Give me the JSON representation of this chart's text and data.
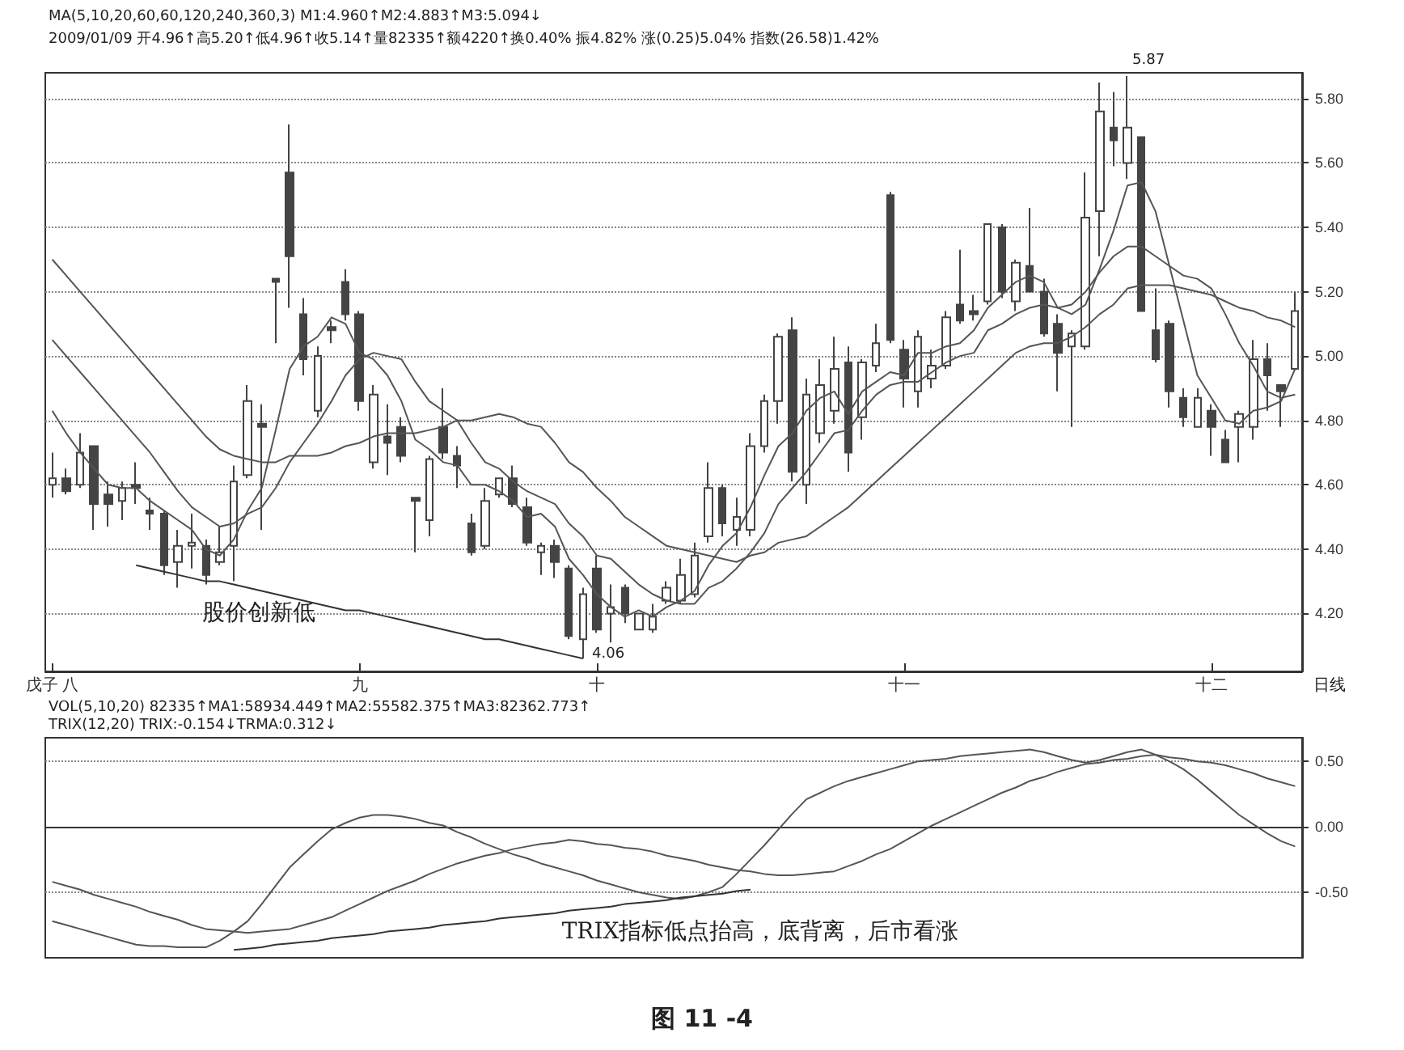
{
  "chart_data": [
    {
      "type": "candlestick",
      "color": "#444444",
      "categories": [
        "戊子 八",
        null,
        null,
        null,
        null,
        null,
        null,
        null,
        null,
        null,
        null,
        null,
        null,
        null,
        null,
        null,
        null,
        null,
        null,
        null,
        null,
        null,
        "九",
        null,
        null,
        null,
        null,
        null,
        null,
        null,
        null,
        null,
        null,
        null,
        null,
        null,
        null,
        null,
        null,
        "十",
        null,
        null,
        null,
        null,
        null,
        null,
        null,
        null,
        null,
        null,
        null,
        null,
        null,
        null,
        null,
        null,
        null,
        null,
        null,
        null,
        null,
        "十一",
        null,
        null,
        null,
        null,
        null,
        null,
        null,
        null,
        null,
        null,
        null,
        null,
        null,
        null,
        null,
        null,
        null,
        null,
        null,
        null,
        null,
        "十二",
        null,
        null,
        null,
        null,
        null,
        null
      ],
      "ohlc": [
        [
          4.6,
          4.7,
          4.56,
          4.62
        ],
        [
          4.62,
          4.65,
          4.57,
          4.58
        ],
        [
          4.6,
          4.76,
          4.59,
          4.7
        ],
        [
          4.72,
          4.72,
          4.46,
          4.54
        ],
        [
          4.57,
          4.61,
          4.47,
          4.54
        ],
        [
          4.55,
          4.61,
          4.49,
          4.59
        ],
        [
          4.6,
          4.67,
          4.54,
          4.59
        ],
        [
          4.52,
          4.56,
          4.46,
          4.51
        ],
        [
          4.51,
          4.52,
          4.32,
          4.35
        ],
        [
          4.36,
          4.46,
          4.28,
          4.41
        ],
        [
          4.41,
          4.51,
          4.34,
          4.42
        ],
        [
          4.41,
          4.43,
          4.29,
          4.32
        ],
        [
          4.36,
          4.47,
          4.35,
          4.39
        ],
        [
          4.41,
          4.66,
          4.3,
          4.61
        ],
        [
          4.63,
          4.91,
          4.62,
          4.86
        ],
        [
          4.79,
          4.85,
          4.46,
          4.78
        ],
        [
          5.24,
          5.24,
          5.04,
          5.23
        ],
        [
          5.57,
          5.72,
          5.15,
          5.31
        ],
        [
          5.13,
          5.18,
          4.94,
          4.99
        ],
        [
          4.83,
          5.03,
          4.81,
          5.0
        ],
        [
          5.09,
          5.11,
          5.04,
          5.08
        ],
        [
          5.23,
          5.27,
          5.11,
          5.13
        ],
        [
          5.13,
          5.14,
          4.83,
          4.86
        ],
        [
          4.67,
          4.91,
          4.65,
          4.88
        ],
        [
          4.75,
          4.85,
          4.63,
          4.73
        ],
        [
          4.78,
          4.81,
          4.67,
          4.69
        ],
        [
          4.56,
          4.56,
          4.39,
          4.55
        ],
        [
          4.49,
          4.69,
          4.44,
          4.68
        ],
        [
          4.78,
          4.9,
          4.68,
          4.7
        ],
        [
          4.69,
          4.72,
          4.59,
          4.66
        ],
        [
          4.48,
          4.51,
          4.38,
          4.39
        ],
        [
          4.41,
          4.59,
          4.4,
          4.55
        ],
        [
          4.57,
          4.62,
          4.56,
          4.62
        ],
        [
          4.62,
          4.66,
          4.53,
          4.54
        ],
        [
          4.53,
          4.56,
          4.41,
          4.42
        ],
        [
          4.39,
          4.42,
          4.32,
          4.41
        ],
        [
          4.41,
          4.43,
          4.31,
          4.36
        ],
        [
          4.34,
          4.35,
          4.12,
          4.13
        ],
        [
          4.12,
          4.28,
          4.06,
          4.26
        ],
        [
          4.34,
          4.38,
          4.14,
          4.15
        ],
        [
          4.2,
          4.29,
          4.11,
          4.22
        ],
        [
          4.28,
          4.29,
          4.17,
          4.2
        ],
        [
          4.15,
          4.2,
          4.15,
          4.2
        ],
        [
          4.15,
          4.23,
          4.14,
          4.19
        ],
        [
          4.24,
          4.3,
          4.23,
          4.28
        ],
        [
          4.24,
          4.37,
          4.23,
          4.32
        ],
        [
          4.26,
          4.42,
          4.25,
          4.38
        ],
        [
          4.44,
          4.67,
          4.42,
          4.59
        ],
        [
          4.59,
          4.6,
          4.44,
          4.48
        ],
        [
          4.46,
          4.56,
          4.41,
          4.5
        ],
        [
          4.46,
          4.76,
          4.44,
          4.72
        ],
        [
          4.72,
          4.88,
          4.7,
          4.86
        ],
        [
          4.86,
          5.07,
          4.79,
          5.06
        ],
        [
          5.08,
          5.12,
          4.61,
          4.64
        ],
        [
          4.6,
          4.93,
          4.54,
          4.88
        ],
        [
          4.76,
          4.99,
          4.73,
          4.91
        ],
        [
          4.83,
          5.06,
          4.79,
          4.96
        ],
        [
          4.98,
          5.03,
          4.64,
          4.7
        ],
        [
          4.81,
          4.99,
          4.74,
          4.98
        ],
        [
          4.97,
          5.1,
          4.95,
          5.04
        ],
        [
          5.5,
          5.51,
          5.04,
          5.05
        ],
        [
          5.02,
          5.05,
          4.84,
          4.93
        ],
        [
          4.89,
          5.08,
          4.84,
          5.06
        ],
        [
          4.93,
          5.02,
          4.9,
          4.97
        ],
        [
          4.97,
          5.14,
          4.96,
          5.12
        ],
        [
          5.16,
          5.33,
          5.1,
          5.11
        ],
        [
          5.14,
          5.19,
          5.11,
          5.13
        ],
        [
          5.17,
          5.41,
          5.16,
          5.41
        ],
        [
          5.4,
          5.41,
          5.18,
          5.2
        ],
        [
          5.17,
          5.3,
          5.14,
          5.29
        ],
        [
          5.28,
          5.46,
          5.2,
          5.2
        ],
        [
          5.2,
          5.24,
          5.06,
          5.07
        ],
        [
          5.1,
          5.13,
          4.89,
          5.01
        ],
        [
          5.03,
          5.08,
          4.78,
          5.07
        ],
        [
          5.03,
          5.57,
          5.02,
          5.43
        ],
        [
          5.45,
          5.85,
          5.31,
          5.76
        ],
        [
          5.71,
          5.82,
          5.59,
          5.67
        ],
        [
          5.6,
          5.87,
          5.55,
          5.71
        ],
        [
          5.68,
          5.68,
          5.14,
          5.14
        ],
        [
          5.08,
          5.21,
          4.98,
          4.99
        ],
        [
          5.1,
          5.11,
          4.84,
          4.89
        ],
        [
          4.87,
          4.9,
          4.78,
          4.81
        ],
        [
          4.78,
          4.9,
          4.78,
          4.87
        ],
        [
          4.83,
          4.85,
          4.69,
          4.78
        ],
        [
          4.74,
          4.77,
          4.67,
          4.67
        ],
        [
          4.78,
          4.83,
          4.67,
          4.82
        ],
        [
          4.78,
          5.05,
          4.74,
          4.99
        ],
        [
          4.99,
          5.04,
          4.83,
          4.94
        ],
        [
          4.91,
          4.91,
          4.78,
          4.89
        ],
        [
          4.96,
          5.2,
          4.96,
          5.14
        ]
      ],
      "series": [
        {
          "type": "line",
          "color": "#555555",
          "values": [
            4.83,
            4.76,
            4.7,
            4.65,
            4.6,
            4.59,
            4.59,
            4.55,
            4.52,
            4.49,
            4.46,
            4.4,
            4.38,
            4.43,
            4.52,
            4.59,
            4.77,
            4.96,
            5.03,
            5.06,
            5.12,
            5.1,
            5.01,
            4.99,
            4.94,
            4.86,
            4.74,
            4.71,
            4.67,
            4.66,
            4.6,
            4.6,
            4.58,
            4.55,
            4.5,
            4.51,
            4.47,
            4.37,
            4.32,
            4.26,
            4.22,
            4.19,
            4.21,
            4.19,
            4.22,
            4.24,
            4.27,
            4.35,
            4.41,
            4.45,
            4.53,
            4.63,
            4.72,
            4.76,
            4.83,
            4.87,
            4.89,
            4.82,
            4.89,
            4.92,
            4.95,
            4.94,
            5.01,
            5.01,
            5.03,
            5.04,
            5.08,
            5.15,
            5.19,
            5.23,
            5.25,
            5.23,
            5.15,
            5.13,
            5.16,
            5.27,
            5.39,
            5.53,
            5.54,
            5.45,
            5.28,
            5.11,
            4.94,
            4.87,
            4.8,
            4.79,
            4.83,
            4.84,
            4.86,
            4.96
          ]
        },
        {
          "type": "line",
          "color": "#555555",
          "values": [
            5.05,
            5.0,
            4.95,
            4.9,
            4.85,
            4.8,
            4.75,
            4.7,
            4.64,
            4.58,
            4.53,
            4.5,
            4.47,
            4.48,
            4.51,
            4.53,
            4.59,
            4.67,
            4.73,
            4.79,
            4.86,
            4.94,
            4.99,
            5.01,
            5.0,
            4.99,
            4.92,
            4.86,
            4.83,
            4.8,
            4.73,
            4.67,
            4.65,
            4.61,
            4.58,
            4.56,
            4.54,
            4.48,
            4.44,
            4.38,
            4.37,
            4.33,
            4.29,
            4.26,
            4.24,
            4.23,
            4.23,
            4.28,
            4.3,
            4.34,
            4.39,
            4.45,
            4.54,
            4.59,
            4.64,
            4.7,
            4.76,
            4.77,
            4.83,
            4.88,
            4.91,
            4.92,
            4.92,
            4.95,
            4.98,
            5.0,
            5.01,
            5.08,
            5.1,
            5.13,
            5.15,
            5.16,
            5.15,
            5.16,
            5.2,
            5.26,
            5.31,
            5.34,
            5.34,
            5.31,
            5.28,
            5.25,
            5.24,
            5.21,
            5.13,
            5.04,
            4.97,
            4.89,
            4.87,
            4.88
          ]
        },
        {
          "type": "line",
          "color": "#555555",
          "values": [
            5.3,
            5.25,
            5.2,
            5.15,
            5.1,
            5.05,
            5.0,
            4.95,
            4.9,
            4.85,
            4.8,
            4.75,
            4.71,
            4.69,
            4.68,
            4.67,
            4.67,
            4.69,
            4.69,
            4.69,
            4.7,
            4.72,
            4.73,
            4.75,
            4.76,
            4.76,
            4.76,
            4.77,
            4.78,
            4.8,
            4.8,
            4.81,
            4.82,
            4.81,
            4.79,
            4.78,
            4.73,
            4.67,
            4.64,
            4.59,
            4.55,
            4.5,
            4.47,
            4.44,
            4.41,
            4.4,
            4.39,
            4.38,
            4.37,
            4.36,
            4.38,
            4.39,
            4.42,
            4.43,
            4.44,
            4.47,
            4.5,
            4.53,
            4.57,
            4.61,
            4.65,
            4.69,
            4.73,
            4.77,
            4.81,
            4.85,
            4.89,
            4.93,
            4.97,
            5.01,
            5.03,
            5.04,
            5.04,
            5.06,
            5.09,
            5.13,
            5.16,
            5.21,
            5.22,
            5.22,
            5.22,
            5.21,
            5.2,
            5.19,
            5.17,
            5.15,
            5.14,
            5.12,
            5.11,
            5.09
          ]
        },
        {
          "type": "line",
          "color": "#333333",
          "values": [
            null,
            null,
            null,
            null,
            null,
            null,
            4.35,
            4.34,
            4.33,
            4.32,
            4.31,
            4.3,
            4.3,
            4.29,
            4.28,
            4.27,
            4.26,
            4.25,
            4.24,
            4.23,
            4.22,
            4.21,
            4.21,
            4.2,
            4.19,
            4.18,
            4.17,
            4.16,
            4.15,
            4.14,
            4.13,
            4.12,
            4.12,
            4.11,
            4.1,
            4.09,
            4.08,
            4.07,
            4.06,
            null,
            null,
            null,
            null,
            null,
            null,
            null,
            null,
            null,
            null,
            null,
            null,
            null,
            null,
            null,
            null,
            null,
            null,
            null,
            null,
            null,
            null,
            null,
            null,
            null,
            null,
            null,
            null,
            null,
            null,
            null,
            null,
            null,
            null,
            null,
            null,
            null,
            null,
            null,
            null,
            null,
            null,
            null,
            null,
            null,
            null,
            null,
            null,
            null,
            null,
            null
          ]
        }
      ],
      "ylim": [
        4.02,
        5.88
      ],
      "yticks": [
        {
          "value": 4.2,
          "label": "4.20"
        },
        {
          "value": 4.4,
          "label": "4.40"
        },
        {
          "value": 4.6,
          "label": "4.60"
        },
        {
          "value": 4.8,
          "label": "4.80"
        },
        {
          "value": 5.0,
          "label": "5.00"
        },
        {
          "value": 5.2,
          "label": "5.20"
        },
        {
          "value": 5.4,
          "label": "5.40"
        },
        {
          "value": 5.6,
          "label": "5.60"
        },
        {
          "value": 5.8,
          "label": "5.80"
        }
      ],
      "grid": "y",
      "marker": "none",
      "line_style": "solid",
      "annotations": [
        "MA(5,10,20,60,60,120,240,360,3) M1:4.960↑M2:4.883↑M3:5.094↓",
        "2009/01/09 开4.96↑高5.20↑低4.96↑收5.14↑量82335↑额4220↑换0.40% 振4.82% 涨(0.25)5.04% 指数(26.58)1.42%",
        "股价创新低",
        "日线",
        "5.87",
        "4.06"
      ]
    },
    {
      "type": "line",
      "categories": [
        null,
        null,
        null,
        null,
        null,
        null,
        null,
        null,
        null,
        null,
        null,
        null,
        null,
        null,
        null,
        null,
        null,
        null,
        null,
        null,
        null,
        null,
        null,
        null,
        null,
        null,
        null,
        null,
        null,
        null,
        null,
        null,
        null,
        null,
        null,
        null,
        null,
        null,
        null,
        null,
        null,
        null,
        null,
        null,
        null,
        null,
        null,
        null,
        null,
        null,
        null,
        null,
        null,
        null,
        null,
        null,
        null,
        null,
        null,
        null,
        null,
        null,
        null,
        null,
        null,
        null,
        null,
        null,
        null,
        null,
        null,
        null,
        null,
        null,
        null,
        null,
        null,
        null,
        null,
        null,
        null,
        null,
        null,
        null,
        null,
        null,
        null,
        null,
        null,
        null
      ],
      "series": [
        {
          "color": "#555555",
          "values": [
            -0.72,
            -0.75,
            -0.78,
            -0.81,
            -0.84,
            -0.87,
            -0.9,
            -0.91,
            -0.91,
            -0.92,
            -0.92,
            -0.92,
            -0.87,
            -0.8,
            -0.72,
            -0.59,
            -0.45,
            -0.31,
            -0.21,
            -0.11,
            -0.02,
            0.03,
            0.07,
            0.09,
            0.09,
            0.08,
            0.06,
            0.03,
            0.01,
            -0.04,
            -0.08,
            -0.13,
            -0.17,
            -0.21,
            -0.24,
            -0.28,
            -0.31,
            -0.34,
            -0.37,
            -0.41,
            -0.44,
            -0.47,
            -0.5,
            -0.52,
            -0.54,
            -0.55,
            -0.53,
            -0.5,
            -0.46,
            -0.36,
            -0.25,
            -0.14,
            -0.02,
            0.1,
            0.21,
            0.26,
            0.31,
            0.35,
            0.38,
            0.41,
            0.44,
            0.47,
            0.5,
            0.51,
            0.52,
            0.54,
            0.55,
            0.56,
            0.57,
            0.58,
            0.59,
            0.57,
            0.54,
            0.51,
            0.49,
            0.51,
            0.54,
            0.57,
            0.59,
            0.55,
            0.5,
            0.44,
            0.36,
            0.27,
            0.18,
            0.09,
            0.02,
            -0.05,
            -0.11,
            -0.15
          ]
        },
        {
          "color": "#555555",
          "values": [
            -0.42,
            -0.45,
            -0.48,
            -0.52,
            -0.55,
            -0.58,
            -0.61,
            -0.65,
            -0.68,
            -0.71,
            -0.75,
            -0.78,
            -0.79,
            -0.8,
            -0.81,
            -0.8,
            -0.79,
            -0.78,
            -0.75,
            -0.72,
            -0.69,
            -0.64,
            -0.59,
            -0.54,
            -0.49,
            -0.45,
            -0.41,
            -0.36,
            -0.32,
            -0.28,
            -0.25,
            -0.22,
            -0.2,
            -0.17,
            -0.15,
            -0.13,
            -0.12,
            -0.1,
            -0.11,
            -0.13,
            -0.14,
            -0.16,
            -0.17,
            -0.19,
            -0.22,
            -0.24,
            -0.26,
            -0.29,
            -0.31,
            -0.33,
            -0.34,
            -0.36,
            -0.37,
            -0.37,
            -0.36,
            -0.35,
            -0.34,
            -0.3,
            -0.26,
            -0.21,
            -0.17,
            -0.11,
            -0.05,
            0.01,
            0.06,
            0.11,
            0.16,
            0.21,
            0.26,
            0.3,
            0.35,
            0.38,
            0.42,
            0.45,
            0.48,
            0.49,
            0.51,
            0.52,
            0.54,
            0.55,
            0.53,
            0.52,
            0.5,
            0.49,
            0.47,
            0.44,
            0.41,
            0.37,
            0.34,
            0.31
          ]
        },
        {
          "color": "#333333",
          "values": [
            null,
            null,
            null,
            null,
            null,
            null,
            null,
            null,
            null,
            null,
            null,
            null,
            null,
            -0.94,
            -0.93,
            -0.92,
            -0.9,
            -0.89,
            -0.88,
            -0.87,
            -0.85,
            -0.84,
            -0.83,
            -0.82,
            -0.8,
            -0.79,
            -0.78,
            -0.77,
            -0.75,
            -0.74,
            -0.73,
            -0.72,
            -0.7,
            -0.69,
            -0.68,
            -0.67,
            -0.66,
            -0.64,
            -0.63,
            -0.62,
            -0.61,
            -0.59,
            -0.58,
            -0.57,
            -0.56,
            -0.54,
            -0.53,
            -0.52,
            -0.51,
            -0.49,
            -0.48,
            null,
            null,
            null,
            null,
            null,
            null,
            null,
            null,
            null,
            null,
            null,
            null,
            null,
            null,
            null,
            null,
            null,
            null,
            null,
            null,
            null,
            null,
            null,
            null,
            null,
            null,
            null,
            null,
            null,
            null,
            null,
            null,
            null,
            null,
            null,
            null,
            null,
            null,
            null
          ]
        }
      ],
      "ylim": [
        -1.0,
        0.68
      ],
      "yticks": [
        {
          "value": -0.5,
          "label": "-0.50"
        },
        {
          "value": 0,
          "label": "0.00"
        },
        {
          "value": 0.5,
          "label": "0.50"
        }
      ],
      "grid": "y",
      "tick_labels": "y",
      "marker": "none",
      "line_style": "solid",
      "annotations": [
        "VOL(5,10,20) 82335↑MA1:58934.449↑MA2:55582.375↑MA3:82362.773↑",
        "TRIX(12,20) TRIX:-0.154↓TRMA:0.312↓",
        "TRIX指标低点抬高，底背离，后市看涨",
        "图 11 -4"
      ]
    }
  ]
}
